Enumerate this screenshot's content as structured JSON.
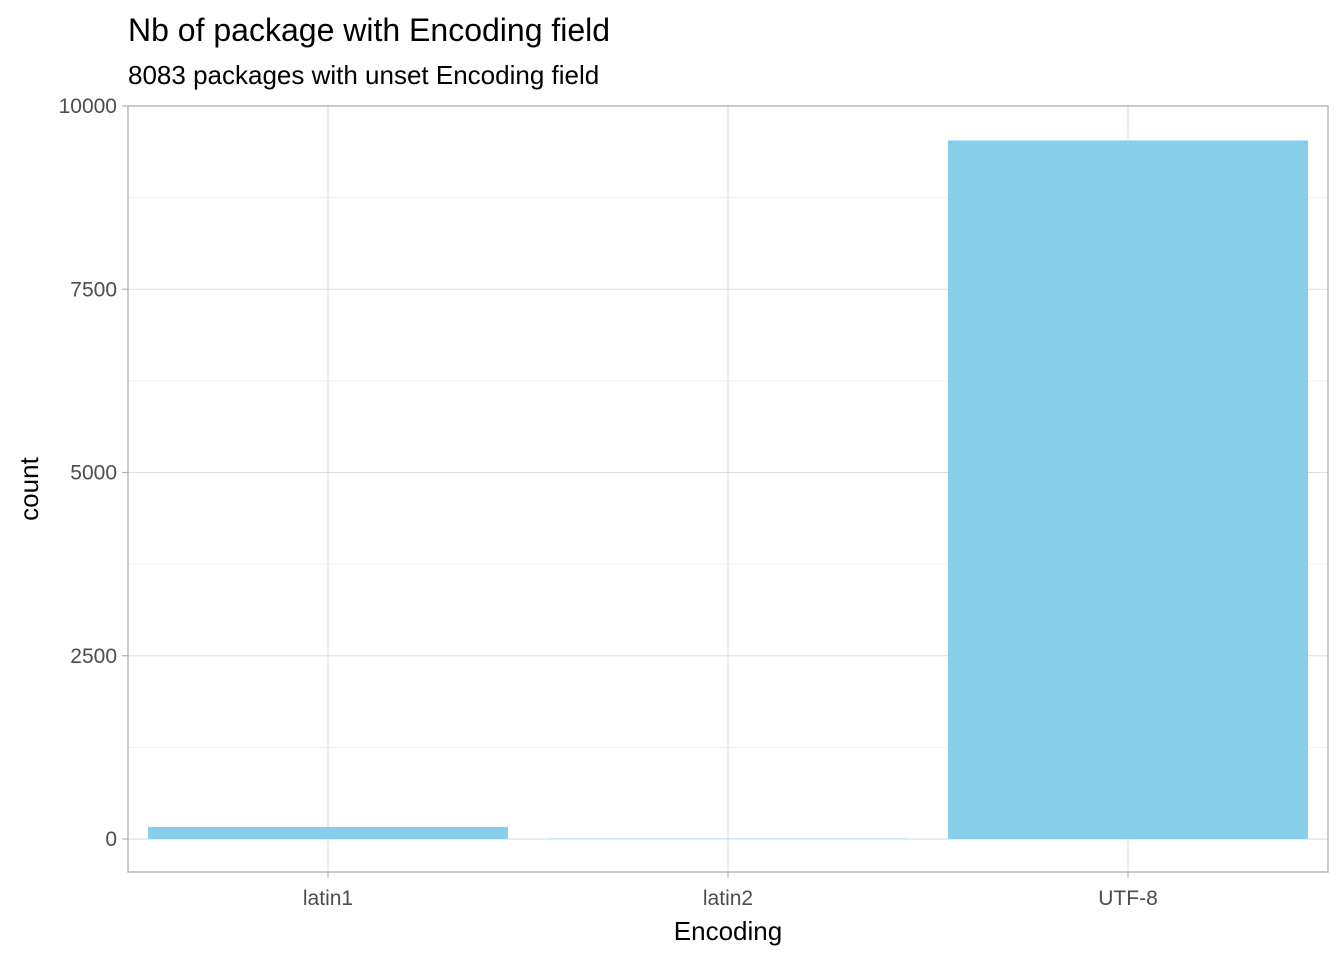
{
  "chart_data": {
    "type": "bar",
    "title": "Nb of package with Encoding field",
    "subtitle": "8083 packages with unset Encoding field",
    "xlabel": "Encoding",
    "ylabel": "count",
    "categories": [
      "latin1",
      "latin2",
      "UTF-8"
    ],
    "values": [
      165,
      5,
      9530
    ],
    "ylim": [
      -450,
      10000
    ],
    "yticks": [
      0,
      2500,
      5000,
      7500,
      10000
    ],
    "ytick_labels": [
      "0",
      "2500",
      "5000",
      "7500",
      "10000"
    ],
    "grid": true,
    "bar_color": "#87ceeb",
    "legend": "none"
  }
}
